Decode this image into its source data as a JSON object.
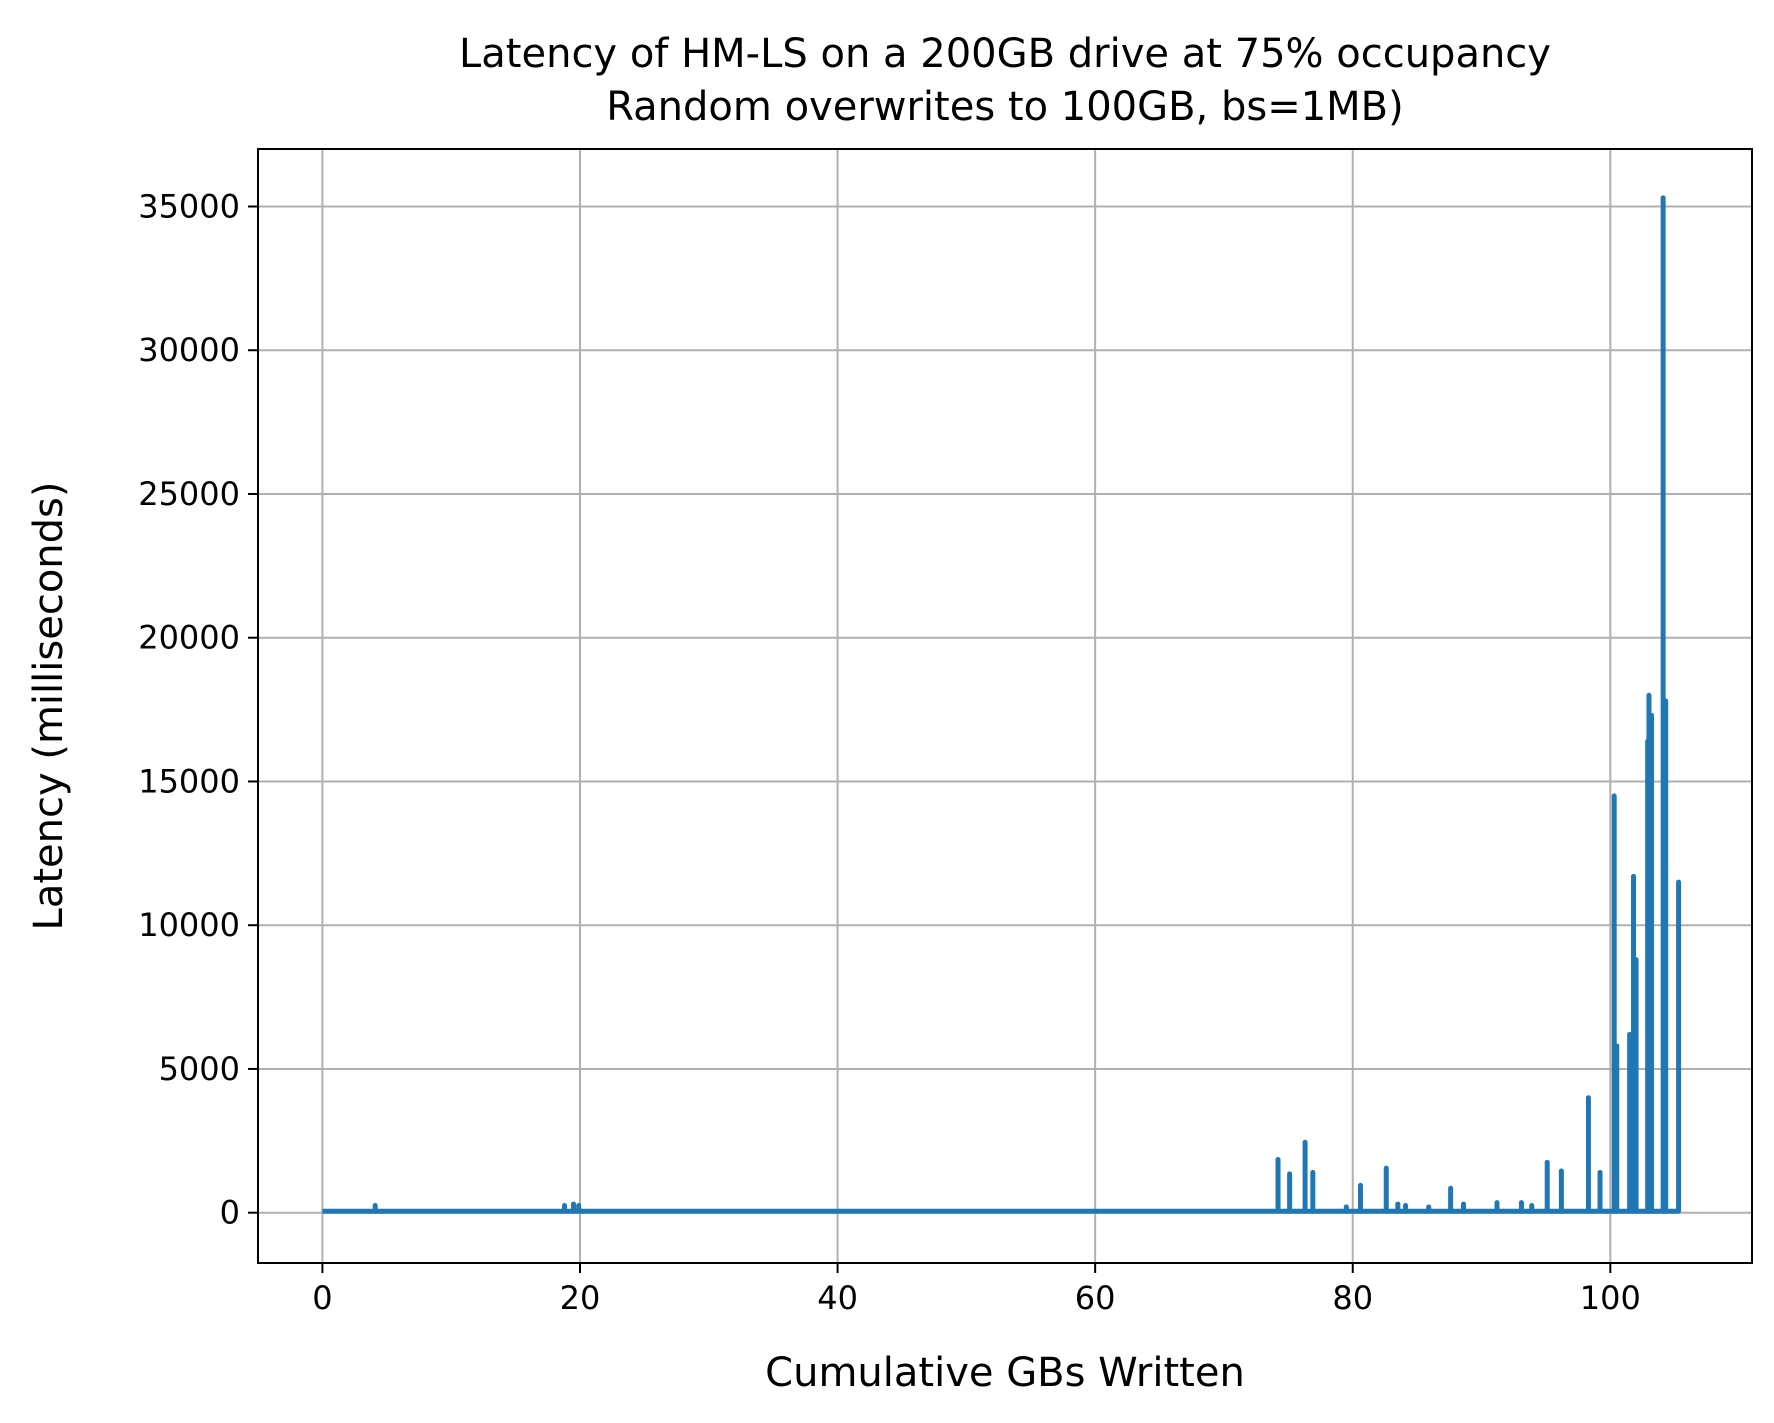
{
  "chart_data": {
    "type": "line",
    "title": "Latency of HM-LS on a 200GB drive at 75% occupancy",
    "subtitle": "Random overwrites to 100GB, bs=1MB)",
    "xlabel": "Cumulative GBs Written",
    "ylabel": "Latency (milliseconds)",
    "xlim": [
      -5,
      111
    ],
    "ylim": [
      -1750,
      37000
    ],
    "xticks": [
      0,
      20,
      40,
      60,
      80,
      100
    ],
    "yticks": [
      0,
      5000,
      10000,
      15000,
      20000,
      25000,
      30000,
      35000
    ],
    "grid": true,
    "legend": "none",
    "color": "#1f77b4",
    "baseline": 50,
    "x_end": 105.3,
    "spikes": [
      {
        "x": 4.1,
        "y": 250
      },
      {
        "x": 18.8,
        "y": 250
      },
      {
        "x": 19.5,
        "y": 300
      },
      {
        "x": 19.9,
        "y": 250
      },
      {
        "x": 74.2,
        "y": 1850
      },
      {
        "x": 75.1,
        "y": 1350
      },
      {
        "x": 76.3,
        "y": 2450
      },
      {
        "x": 76.9,
        "y": 1400
      },
      {
        "x": 79.5,
        "y": 200
      },
      {
        "x": 80.6,
        "y": 950
      },
      {
        "x": 82.6,
        "y": 1550
      },
      {
        "x": 83.5,
        "y": 300
      },
      {
        "x": 84.1,
        "y": 250
      },
      {
        "x": 85.9,
        "y": 200
      },
      {
        "x": 87.6,
        "y": 850
      },
      {
        "x": 88.6,
        "y": 300
      },
      {
        "x": 91.2,
        "y": 350
      },
      {
        "x": 93.1,
        "y": 350
      },
      {
        "x": 93.9,
        "y": 250
      },
      {
        "x": 95.1,
        "y": 1750
      },
      {
        "x": 96.2,
        "y": 1450
      },
      {
        "x": 98.3,
        "y": 4000
      },
      {
        "x": 99.2,
        "y": 1400
      },
      {
        "x": 100.3,
        "y": 14500
      },
      {
        "x": 100.5,
        "y": 5800
      },
      {
        "x": 101.5,
        "y": 6200
      },
      {
        "x": 101.8,
        "y": 11700
      },
      {
        "x": 102.0,
        "y": 8800
      },
      {
        "x": 102.9,
        "y": 16400
      },
      {
        "x": 103.0,
        "y": 18000
      },
      {
        "x": 103.2,
        "y": 17300
      },
      {
        "x": 104.1,
        "y": 35300
      },
      {
        "x": 104.3,
        "y": 17800
      },
      {
        "x": 105.3,
        "y": 11500
      }
    ]
  }
}
